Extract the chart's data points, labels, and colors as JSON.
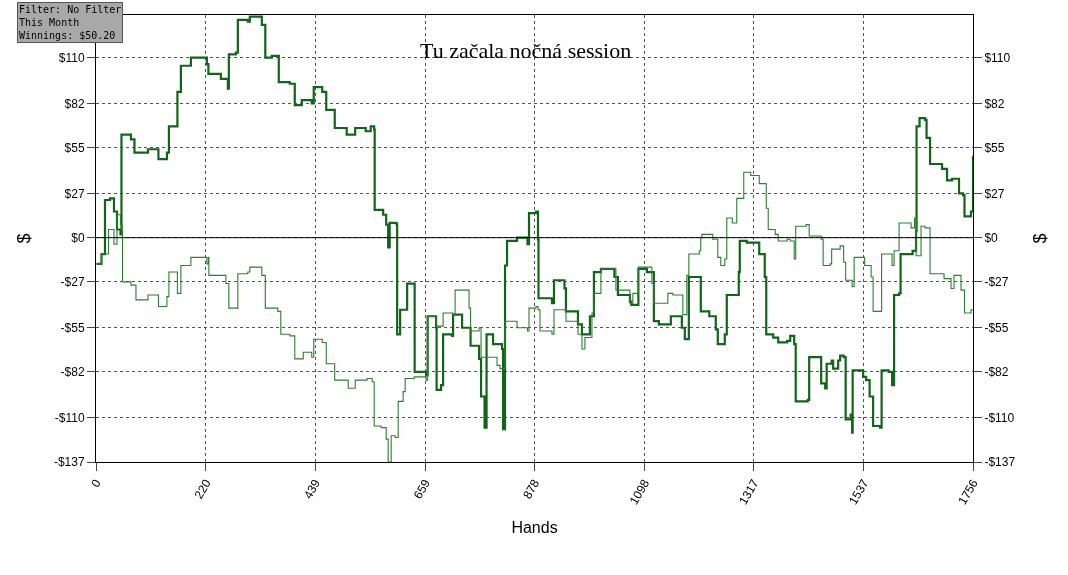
{
  "chart_data": {
    "type": "step",
    "xlabel": "Hands",
    "ylabel": "$",
    "y2label": "$",
    "annotations": [
      "Filter: No Filter\nThis Month\nWinnings: $50.20",
      "Tu začala nočná session"
    ],
    "series": [
      {
        "color": "#12641a",
        "x": [
          1,
          11,
          18,
          28,
          36,
          42,
          49,
          51,
          70,
          77,
          104,
          125,
          142,
          146,
          160,
          163,
          170,
          190,
          222,
          225,
          250,
          264,
          266,
          280,
          284,
          304,
          308,
          332,
          339,
          352,
          366,
          388,
          398,
          412,
          432,
          436,
          453,
          461,
          478,
          502,
          519,
          540,
          550,
          557,
          558,
          575,
          581,
          585,
          588,
          602,
          603,
          609,
          623,
          637,
          638,
          661,
          664,
          681,
          682,
          691,
          695,
          713,
          715,
          733,
          750,
          767,
          771,
          778,
          782,
          795,
          813,
          815,
          819,
          823,
          843,
          864,
          867,
          881,
          885,
          886,
          913,
          917,
          938,
          941,
          965,
          973,
          989,
          997,
          1011,
          1038,
          1045,
          1069,
          1072,
          1086,
          1103,
          1117,
          1127,
          1151,
          1173,
          1179,
          1187,
          1208,
          1211,
          1228,
          1241,
          1245,
          1251,
          1259,
          1263,
          1279,
          1287,
          1289,
          1303,
          1328,
          1339,
          1342,
          1356,
          1366,
          1384,
          1390,
          1398,
          1401,
          1425,
          1428,
          1449,
          1452,
          1460,
          1463,
          1473,
          1476,
          1486,
          1490,
          1497,
          1501,
          1511,
          1514,
          1515,
          1536,
          1542,
          1549,
          1556,
          1570,
          1573,
          1587,
          1594,
          1598,
          1608,
          1611,
          1635,
          1642,
          1643,
          1649,
          1660,
          1663,
          1670,
          1694,
          1704,
          1714,
          1728,
          1736,
          1739,
          1749,
          1752,
          1756
        ],
        "values": [
          -16,
          -10,
          23,
          24,
          16,
          5,
          2,
          63,
          60,
          52,
          54,
          48,
          52,
          68,
          68,
          89,
          105,
          110,
          106,
          100,
          97,
          91,
          112,
          113,
          133,
          132,
          135,
          130,
          110,
          111,
          95,
          94,
          81,
          84,
          82,
          92,
          89,
          78,
          67,
          63,
          67,
          65,
          68,
          66,
          17,
          14,
          8,
          -6,
          9,
          8,
          -59,
          -44,
          -28,
          -28,
          -82,
          -84,
          -48,
          -55,
          -93,
          -90,
          -59,
          -60,
          -47,
          -55,
          -66,
          -74,
          -97,
          -116,
          -59,
          -65,
          -68,
          -117,
          -17,
          -2,
          0,
          -4,
          15,
          16,
          -1,
          -37,
          -40,
          -26,
          -31,
          -45,
          -53,
          -59,
          -48,
          -21,
          -19,
          -24,
          -35,
          -39,
          -41,
          -19,
          -21,
          -51,
          -53,
          -48,
          -55,
          -62,
          -24,
          -24,
          -45,
          -48,
          -56,
          -65,
          -65,
          -59,
          -35,
          -35,
          -21,
          -2,
          -3,
          -10,
          -24,
          -59,
          -61,
          -64,
          -63,
          -60,
          -65,
          -100,
          -99,
          -73,
          -73,
          -89,
          -92,
          -77,
          -75,
          -80,
          -75,
          -72,
          -73,
          -111,
          -108,
          -119,
          -81,
          -85,
          -87,
          -97,
          -115,
          -116,
          -81,
          -82,
          -90,
          -35,
          -34,
          -10,
          -8,
          4,
          68,
          73,
          72,
          61,
          45,
          42,
          35,
          36,
          27,
          26,
          13,
          13,
          16,
          50
        ]
      },
      {
        "color": "#2e7d32",
        "x": [
          1,
          11,
          25,
          36,
          42,
          49,
          52,
          53,
          70,
          80,
          104,
          125,
          142,
          146,
          160,
          163,
          170,
          190,
          222,
          225,
          226,
          260,
          266,
          280,
          284,
          304,
          308,
          332,
          339,
          364,
          370,
          388,
          398,
          415,
          432,
          436,
          453,
          461,
          478,
          505,
          519,
          543,
          553,
          557,
          571,
          581,
          585,
          588,
          591,
          599,
          605,
          615,
          619,
          637,
          661,
          664,
          681,
          695,
          715,
          719,
          747,
          750,
          767,
          771,
          803,
          809,
          819,
          843,
          864,
          867,
          881,
          885,
          889,
          913,
          917,
          941,
          965,
          973,
          979,
          993,
          997,
          1011,
          1041,
          1069,
          1075,
          1086,
          1113,
          1117,
          1145,
          1155,
          1175,
          1183,
          1187,
          1208,
          1211,
          1213,
          1235,
          1245,
          1251,
          1259,
          1263,
          1274,
          1283,
          1297,
          1311,
          1328,
          1342,
          1346,
          1360,
          1366,
          1384,
          1390,
          1398,
          1401,
          1422,
          1428,
          1452,
          1456,
          1470,
          1473,
          1490,
          1497,
          1501,
          1514,
          1518,
          1539,
          1552,
          1556,
          1570,
          1573,
          1594,
          1598,
          1608,
          1632,
          1639,
          1642,
          1652,
          1660,
          1670,
          1698,
          1712,
          1718,
          1732,
          1739,
          1752,
          1756
        ],
        "values": [
          -16,
          -10,
          5,
          -4,
          14,
          8,
          4,
          -27,
          -29,
          -38,
          -35,
          -42,
          -36,
          -21,
          -21,
          -34,
          -17,
          -12,
          -16,
          -12,
          -23,
          -28,
          -43,
          -43,
          -22,
          -21,
          -18,
          -23,
          -43,
          -45,
          -59,
          -60,
          -74,
          -70,
          -73,
          -62,
          -64,
          -77,
          -87,
          -92,
          -87,
          -86,
          -88,
          -115,
          -116,
          -123,
          -137,
          -137,
          -121,
          -122,
          -100,
          -94,
          -86,
          -85,
          -87,
          -48,
          -54,
          -46,
          -47,
          -32,
          -43,
          -57,
          -55,
          -73,
          -78,
          -80,
          -51,
          -55,
          -57,
          -43,
          -42,
          -44,
          -57,
          -59,
          -44,
          -51,
          -59,
          -68,
          -61,
          -46,
          -34,
          -19,
          -32,
          -40,
          -34,
          -18,
          -28,
          -40,
          -34,
          -35,
          -47,
          -23,
          -10,
          -8,
          0,
          2,
          -1,
          -12,
          -17,
          -13,
          12,
          9,
          24,
          40,
          38,
          33,
          18,
          5,
          2,
          -2,
          -1,
          -2,
          -13,
          7,
          8,
          1,
          -1,
          -17,
          -16,
          -7,
          -5,
          -15,
          -26,
          -30,
          -12,
          -17,
          -24,
          -45,
          -45,
          -10,
          -17,
          -8,
          9,
          6,
          12,
          -11,
          7,
          6,
          -22,
          -25,
          -31,
          -23,
          -32,
          -46,
          -44,
          -44
        ]
      }
    ],
    "xlim": [
      0,
      1756
    ],
    "xticks": [
      0,
      220,
      439,
      659,
      878,
      1098,
      1317,
      1537,
      1756
    ],
    "ylim": [
      -137,
      136
    ],
    "yticks": [
      {
        "value": -137,
        "label": "-$137"
      },
      {
        "value": -110,
        "label": "-$110"
      },
      {
        "value": -82,
        "label": "-$82"
      },
      {
        "value": -55,
        "label": "-$55"
      },
      {
        "value": -27,
        "label": "-$27"
      },
      {
        "value": 0,
        "label": "$0"
      },
      {
        "value": 27,
        "label": "$27"
      },
      {
        "value": 55,
        "label": "$55"
      },
      {
        "value": 82,
        "label": "$82"
      },
      {
        "value": 110,
        "label": "$110"
      }
    ],
    "y2lim": [
      -137,
      136
    ],
    "y2ticks": [
      {
        "value": -137,
        "label": "-$137"
      },
      {
        "value": -110,
        "label": "-$110"
      },
      {
        "value": -82,
        "label": "-$82"
      },
      {
        "value": -55,
        "label": "-$55"
      },
      {
        "value": -27,
        "label": "-$27"
      },
      {
        "value": 0,
        "label": "$0"
      },
      {
        "value": 27,
        "label": "$27"
      },
      {
        "value": 55,
        "label": "$55"
      },
      {
        "value": 82,
        "label": "$82"
      },
      {
        "value": 110,
        "label": "$110"
      }
    ],
    "ref_lines": [
      {
        "axis": "y",
        "value": 0,
        "color": "#000000",
        "line_style": "solid"
      }
    ],
    "grid": true,
    "marker": "none",
    "line_style": "solid"
  }
}
